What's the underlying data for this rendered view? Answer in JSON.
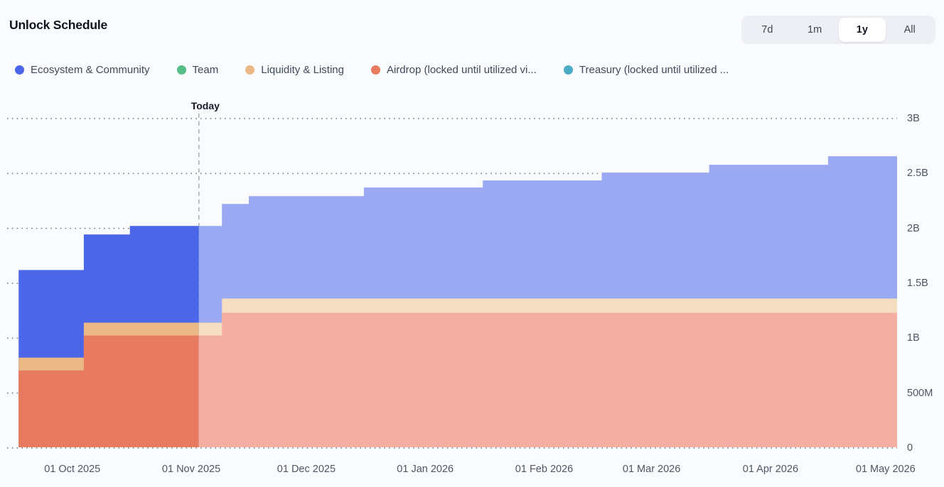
{
  "header": {
    "title": "Unlock Schedule"
  },
  "range": {
    "options": [
      "7d",
      "1m",
      "1y",
      "All"
    ],
    "active": "1y"
  },
  "legend": [
    {
      "key": "ecosystem",
      "label": "Ecosystem & Community"
    },
    {
      "key": "team",
      "label": "Team"
    },
    {
      "key": "liquidity",
      "label": "Liquidity & Listing"
    },
    {
      "key": "airdrop",
      "label": "Airdrop (locked until utilized vi..."
    },
    {
      "key": "treasury",
      "label": "Treasury (locked until utilized ..."
    }
  ],
  "colors": {
    "ecosystem": "#4b66e8",
    "ecosystem_faded": "#9aa9f1",
    "team": "#56bd85",
    "liquidity": "#ebb985",
    "liquidity_faded": "#f5ddc1",
    "airdrop": "#e87a60",
    "airdrop_faded": "#f4aea2",
    "treasury": "#4badc4",
    "grid": "#70757e",
    "today_line": "#9aa1ad"
  },
  "chart_data": {
    "type": "area",
    "title": "Unlock Schedule",
    "legend_position": "top",
    "grid": "dotted-horizontal",
    "stack_order": [
      "airdrop",
      "liquidity",
      "ecosystem",
      "team",
      "treasury"
    ],
    "y_axis": {
      "max": 3000000000,
      "ticks": [
        {
          "label": "0",
          "value": 0
        },
        {
          "label": "500M",
          "value": 500000000
        },
        {
          "label": "1B",
          "value": 1000000000
        },
        {
          "label": "1.5B",
          "value": 1500000000
        },
        {
          "label": "2B",
          "value": 2000000000
        },
        {
          "label": "2.5B",
          "value": 2500000000
        },
        {
          "label": "3B",
          "value": 3000000000
        }
      ]
    },
    "x_axis": {
      "domain_start": "2025-09-14",
      "domain_end": "2026-05-04",
      "ticks": [
        {
          "label": "01 Oct 2025",
          "date": "2025-10-01"
        },
        {
          "label": "01 Nov 2025",
          "date": "2025-11-01"
        },
        {
          "label": "01 Dec 2025",
          "date": "2025-12-01"
        },
        {
          "label": "01 Jan 2026",
          "date": "2026-01-01"
        },
        {
          "label": "01 Feb 2026",
          "date": "2026-02-01"
        },
        {
          "label": "01 Mar 2026",
          "date": "2026-03-01"
        },
        {
          "label": "01 Apr 2026",
          "date": "2026-04-01"
        },
        {
          "label": "01 May 2026",
          "date": "2026-05-01"
        }
      ]
    },
    "today": {
      "date": "2025-11-03",
      "label": "Today"
    },
    "steps": [
      {
        "date": "2025-09-17",
        "airdrop": 706000000,
        "liquidity": 117000000,
        "ecosystem": 797000000,
        "team": 0,
        "treasury": 0
      },
      {
        "date": "2025-10-04",
        "airdrop": 1024000000,
        "liquidity": 117000000,
        "ecosystem": 803000000,
        "team": 0,
        "treasury": 0
      },
      {
        "date": "2025-10-16",
        "airdrop": 1024000000,
        "liquidity": 117000000,
        "ecosystem": 881000000,
        "team": 0,
        "treasury": 0
      },
      {
        "date": "2025-11-09",
        "airdrop": 1231000000,
        "liquidity": 130000000,
        "ecosystem": 862000000,
        "team": 0,
        "treasury": 0
      },
      {
        "date": "2025-11-16",
        "airdrop": 1231000000,
        "liquidity": 130000000,
        "ecosystem": 933000000,
        "team": 0,
        "treasury": 0
      },
      {
        "date": "2025-12-16",
        "airdrop": 1231000000,
        "liquidity": 130000000,
        "ecosystem": 1011000000,
        "team": 0,
        "treasury": 0
      },
      {
        "date": "2026-01-16",
        "airdrop": 1231000000,
        "liquidity": 130000000,
        "ecosystem": 1076000000,
        "team": 0,
        "treasury": 0
      },
      {
        "date": "2026-02-16",
        "airdrop": 1231000000,
        "liquidity": 130000000,
        "ecosystem": 1147000000,
        "team": 0,
        "treasury": 0
      },
      {
        "date": "2026-03-16",
        "airdrop": 1231000000,
        "liquidity": 130000000,
        "ecosystem": 1218000000,
        "team": 0,
        "treasury": 0
      },
      {
        "date": "2026-04-16",
        "airdrop": 1231000000,
        "liquidity": 130000000,
        "ecosystem": 1296000000,
        "team": 0,
        "treasury": 0
      }
    ]
  }
}
